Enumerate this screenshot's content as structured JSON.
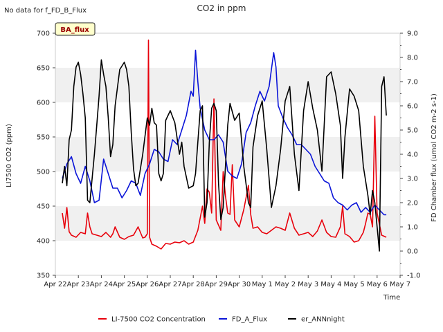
{
  "chart_data": {
    "type": "line",
    "title": "CO2 in ppm",
    "corner_note": "No data for f_FD_B_Flux",
    "badge": "BA_flux",
    "xlabel": "Time",
    "ylabel_left": "LI7500 CO2 (ppm)",
    "ylabel_right": "FD Chamber flux (umol CO2 m-2 s-1)",
    "ylim_left": [
      350,
      700
    ],
    "ylim_right": [
      -1.0,
      9.0
    ],
    "yticks_left": [
      "350",
      "400",
      "450",
      "500",
      "550",
      "600",
      "650",
      "700"
    ],
    "yticks_right": [
      "-1.0",
      "0.0",
      "1.0",
      "2.0",
      "3.0",
      "4.0",
      "5.0",
      "6.0",
      "7.0",
      "8.0",
      "9.0"
    ],
    "x_ticks": [
      "Apr 22",
      "Apr 23",
      "Apr 24",
      "Apr 25",
      "Apr 26",
      "Apr 27",
      "Apr 28",
      "Apr 29",
      "Apr 30",
      "May 1",
      "May 2",
      "May 3",
      "May 4",
      "May 5",
      "May 6",
      "May 7"
    ],
    "xlim_days": [
      0,
      15
    ],
    "grid": "horizontal bands",
    "legend_position": "bottom",
    "series": [
      {
        "name": "LI-7500 CO2 Concentration",
        "axis": "left",
        "color": "#e8000b",
        "x": [
          0.3,
          0.4,
          0.5,
          0.6,
          0.7,
          0.9,
          1.1,
          1.3,
          1.4,
          1.5,
          1.6,
          1.8,
          2.0,
          2.2,
          2.4,
          2.5,
          2.6,
          2.8,
          3.0,
          3.2,
          3.4,
          3.6,
          3.8,
          3.9,
          4.0,
          4.05,
          4.1,
          4.2,
          4.4,
          4.6,
          4.8,
          5.0,
          5.2,
          5.4,
          5.6,
          5.8,
          6.0,
          6.2,
          6.4,
          6.5,
          6.6,
          6.7,
          6.8,
          6.9,
          7.0,
          7.2,
          7.3,
          7.4,
          7.5,
          7.6,
          7.7,
          7.8,
          8.0,
          8.2,
          8.4,
          8.5,
          8.6,
          8.8,
          9.0,
          9.2,
          9.4,
          9.6,
          9.8,
          10.0,
          10.2,
          10.4,
          10.6,
          10.8,
          11.0,
          11.2,
          11.4,
          11.6,
          11.8,
          12.0,
          12.2,
          12.4,
          12.5,
          12.6,
          12.8,
          13.0,
          13.2,
          13.4,
          13.5,
          13.6,
          13.7,
          13.8,
          13.9,
          14.0,
          14.2,
          14.4
        ],
        "values": [
          440,
          418,
          448,
          413,
          408,
          405,
          412,
          410,
          440,
          420,
          410,
          408,
          406,
          412,
          405,
          410,
          420,
          405,
          402,
          406,
          408,
          420,
          404,
          405,
          410,
          690,
          405,
          395,
          392,
          388,
          396,
          395,
          398,
          397,
          400,
          395,
          398,
          415,
          450,
          425,
          475,
          470,
          440,
          605,
          430,
          415,
          500,
          465,
          440,
          438,
          510,
          430,
          420,
          445,
          480,
          438,
          418,
          420,
          412,
          410,
          415,
          420,
          418,
          415,
          440,
          418,
          408,
          410,
          412,
          406,
          414,
          430,
          412,
          406,
          405,
          420,
          450,
          410,
          406,
          398,
          400,
          412,
          425,
          440,
          438,
          420,
          580,
          440,
          408,
          405
        ]
      },
      {
        "name": "FD_A_Flux",
        "axis": "right",
        "color": "#0a14d8",
        "x": [
          0.3,
          0.5,
          0.7,
          0.9,
          1.1,
          1.3,
          1.5,
          1.7,
          1.9,
          2.1,
          2.3,
          2.5,
          2.7,
          2.9,
          3.1,
          3.3,
          3.5,
          3.7,
          3.9,
          4.1,
          4.3,
          4.5,
          4.7,
          4.9,
          5.1,
          5.3,
          5.5,
          5.7,
          5.9,
          6.0,
          6.1,
          6.2,
          6.3,
          6.5,
          6.7,
          6.9,
          7.1,
          7.3,
          7.5,
          7.7,
          7.9,
          8.1,
          8.3,
          8.5,
          8.7,
          8.9,
          9.1,
          9.3,
          9.5,
          9.6,
          9.7,
          9.9,
          10.1,
          10.3,
          10.5,
          10.7,
          10.9,
          11.1,
          11.3,
          11.5,
          11.7,
          11.9,
          12.1,
          12.3,
          12.5,
          12.7,
          12.9,
          13.1,
          13.3,
          13.5,
          13.7,
          13.9,
          14.1,
          14.3,
          14.4
        ],
        "values": [
          3.0,
          3.6,
          3.9,
          3.2,
          2.8,
          3.5,
          2.9,
          2.0,
          2.1,
          3.8,
          3.2,
          2.6,
          2.6,
          2.2,
          2.5,
          2.9,
          2.8,
          2.3,
          3.2,
          3.6,
          4.2,
          4.1,
          3.8,
          3.7,
          4.6,
          4.4,
          5.0,
          5.6,
          6.6,
          6.4,
          8.3,
          7.0,
          5.9,
          5.0,
          4.6,
          4.6,
          4.8,
          4.5,
          3.3,
          3.1,
          3.0,
          3.6,
          4.9,
          5.3,
          6.0,
          6.6,
          6.2,
          6.8,
          8.2,
          7.6,
          6.0,
          5.5,
          5.1,
          4.8,
          4.4,
          4.4,
          4.2,
          4.0,
          3.5,
          3.2,
          2.9,
          2.8,
          2.2,
          2.0,
          1.9,
          1.7,
          1.9,
          2.0,
          1.6,
          1.8,
          1.6,
          1.9,
          1.7,
          1.5,
          1.5
        ]
      },
      {
        "name": "er_ANNnight",
        "axis": "right",
        "color": "#000000",
        "x": [
          0.3,
          0.4,
          0.5,
          0.6,
          0.7,
          0.8,
          0.9,
          1.0,
          1.1,
          1.2,
          1.3,
          1.4,
          1.5,
          1.6,
          1.7,
          1.8,
          1.9,
          2.0,
          2.1,
          2.2,
          2.3,
          2.4,
          2.5,
          2.6,
          2.8,
          3.0,
          3.1,
          3.2,
          3.3,
          3.4,
          3.5,
          3.6,
          3.8,
          4.0,
          4.1,
          4.2,
          4.3,
          4.4,
          4.5,
          4.6,
          4.7,
          4.8,
          5.0,
          5.2,
          5.4,
          5.5,
          5.6,
          5.8,
          6.0,
          6.1,
          6.2,
          6.3,
          6.4,
          6.5,
          6.6,
          6.7,
          6.8,
          6.9,
          7.0,
          7.1,
          7.2,
          7.3,
          7.4,
          7.5,
          7.6,
          7.8,
          8.0,
          8.2,
          8.4,
          8.5,
          8.6,
          8.8,
          9.0,
          9.2,
          9.4,
          9.6,
          9.8,
          10.0,
          10.2,
          10.4,
          10.6,
          10.8,
          11.0,
          11.2,
          11.4,
          11.6,
          11.8,
          12.0,
          12.2,
          12.4,
          12.5,
          12.6,
          12.8,
          13.0,
          13.2,
          13.4,
          13.6,
          13.7,
          13.8,
          13.9,
          14.0,
          14.1,
          14.2,
          14.3,
          14.4
        ],
        "values": [
          2.8,
          3.5,
          2.7,
          4.6,
          5.0,
          6.8,
          7.6,
          7.8,
          7.3,
          6.5,
          5.5,
          2.1,
          2.0,
          3.0,
          4.0,
          5.2,
          6.4,
          7.9,
          7.3,
          6.8,
          5.5,
          3.9,
          4.4,
          6.0,
          7.5,
          7.8,
          7.5,
          6.8,
          4.9,
          3.4,
          2.7,
          2.8,
          4.0,
          5.5,
          5.2,
          5.9,
          5.3,
          5.2,
          3.2,
          2.9,
          3.2,
          5.4,
          5.8,
          5.3,
          4.0,
          4.5,
          3.5,
          2.6,
          2.7,
          3.2,
          4.5,
          5.8,
          6.0,
          1.4,
          2.0,
          4.5,
          5.9,
          6.1,
          5.8,
          2.8,
          1.3,
          1.8,
          3.5,
          5.2,
          6.1,
          5.4,
          5.7,
          3.5,
          2.0,
          1.8,
          4.3,
          5.6,
          6.2,
          4.2,
          1.8,
          2.7,
          4.2,
          6.2,
          6.8,
          4.0,
          2.5,
          5.8,
          7.0,
          5.9,
          5.0,
          3.3,
          7.2,
          7.4,
          6.5,
          5.2,
          3.0,
          4.7,
          6.7,
          6.4,
          5.8,
          3.5,
          2.3,
          1.5,
          2.5,
          2.0,
          1.0,
          0.0,
          6.8,
          7.2,
          5.6
        ]
      }
    ]
  }
}
